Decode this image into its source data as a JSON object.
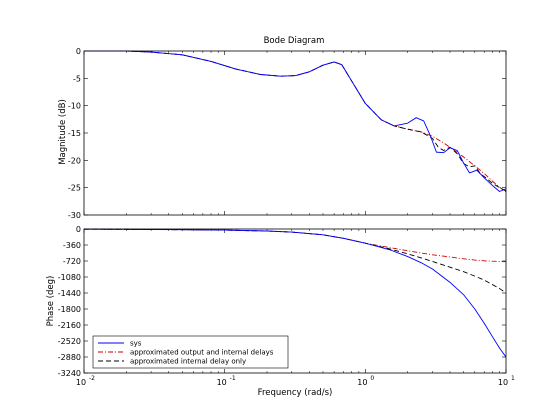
{
  "chart_data": [
    {
      "type": "line",
      "title": "Bode Diagram",
      "ylabel": "Magnitude (dB)",
      "xlabel": "",
      "xscale": "log",
      "xlim": [
        0.01,
        10
      ],
      "ylim": [
        -30,
        0
      ],
      "x_ticks": [
        0.01,
        0.1,
        1,
        10
      ],
      "y_ticks": [
        0,
        -5,
        -10,
        -15,
        -20,
        -25,
        -30
      ],
      "y_tick_labels": [
        "0",
        "-5",
        "-10",
        "-15",
        "-20",
        "-25",
        "-30"
      ],
      "grid": false,
      "series": [
        {
          "name": "sys",
          "color": "#0000ff",
          "style": "solid",
          "x": [
            0.01,
            0.02,
            0.03,
            0.05,
            0.08,
            0.12,
            0.18,
            0.25,
            0.32,
            0.4,
            0.5,
            0.6,
            0.68,
            0.8,
            1.0,
            1.3,
            1.6,
            2.0,
            2.3,
            2.6,
            2.9,
            3.2,
            3.6,
            4.0,
            4.5,
            5.0,
            5.5,
            6.2,
            7.0,
            8.0,
            9.0,
            10
          ],
          "y": [
            0,
            0,
            -0.2,
            -0.7,
            -1.9,
            -3.3,
            -4.3,
            -4.6,
            -4.5,
            -3.8,
            -2.6,
            -2.0,
            -2.5,
            -5.5,
            -9.6,
            -12.6,
            -13.7,
            -13.2,
            -12.2,
            -12.8,
            -15.5,
            -18.5,
            -18.6,
            -17.7,
            -18.2,
            -20.5,
            -22.3,
            -21.8,
            -23.2,
            -24.6,
            -25.7,
            -25.2
          ]
        },
        {
          "name": "approximated output and internal delays",
          "color": "#cc0000",
          "style": "dashdot",
          "x": [
            0.01,
            0.02,
            0.03,
            0.05,
            0.08,
            0.12,
            0.18,
            0.25,
            0.32,
            0.4,
            0.5,
            0.6,
            0.68,
            0.8,
            1.0,
            1.3,
            1.6,
            2.0,
            2.5,
            3.0,
            3.6,
            4.2,
            5.0,
            6.0,
            7.0,
            8.0,
            9.0,
            10
          ],
          "y": [
            0,
            0,
            -0.2,
            -0.7,
            -1.9,
            -3.3,
            -4.3,
            -4.6,
            -4.5,
            -3.8,
            -2.6,
            -2.0,
            -2.5,
            -5.5,
            -9.6,
            -12.6,
            -13.7,
            -14.3,
            -14.8,
            -15.6,
            -16.8,
            -18.0,
            -19.4,
            -21.0,
            -22.4,
            -23.8,
            -24.9,
            -25.8
          ]
        },
        {
          "name": "approximated internal delay only",
          "color": "#000000",
          "style": "dashed",
          "x": [
            0.01,
            0.02,
            0.03,
            0.05,
            0.08,
            0.12,
            0.18,
            0.25,
            0.32,
            0.4,
            0.5,
            0.6,
            0.68,
            0.8,
            1.0,
            1.3,
            1.6,
            2.0,
            2.5,
            3.0,
            3.3,
            3.6,
            4.0,
            4.5,
            5.0,
            5.5,
            6.0,
            6.6,
            7.2,
            8.0,
            9.0,
            10
          ],
          "y": [
            0,
            0,
            -0.2,
            -0.7,
            -1.9,
            -3.3,
            -4.3,
            -4.6,
            -4.5,
            -3.8,
            -2.6,
            -2.0,
            -2.5,
            -5.5,
            -9.6,
            -12.6,
            -13.7,
            -14.3,
            -14.8,
            -16.0,
            -17.6,
            -18.2,
            -17.6,
            -18.8,
            -20.6,
            -21.2,
            -21.0,
            -22.5,
            -23.2,
            -24.2,
            -25.0,
            -25.6
          ]
        }
      ]
    },
    {
      "type": "line",
      "title": "",
      "ylabel": "Phase (deg)",
      "xlabel": "Frequency  (rad/s)",
      "xscale": "log",
      "xlim": [
        0.01,
        10
      ],
      "ylim": [
        -3240,
        0
      ],
      "x_ticks": [
        0.01,
        0.1,
        1,
        10
      ],
      "x_tick_labels": [
        "10",
        "10",
        "10",
        "10"
      ],
      "x_tick_exponents": [
        "-2",
        "-1",
        "0",
        "1"
      ],
      "y_ticks": [
        0,
        -360,
        -720,
        -1080,
        -1440,
        -1800,
        -2160,
        -2520,
        -2880,
        -3240
      ],
      "y_tick_labels": [
        "0",
        "-360",
        "-720",
        "-1080",
        "-1440",
        "-1800",
        "-2160",
        "-2520",
        "-2880",
        "-3240"
      ],
      "grid": false,
      "legend_position": "bottom-left",
      "series": [
        {
          "name": "sys",
          "color": "#0000ff",
          "style": "solid",
          "x": [
            0.01,
            0.02,
            0.05,
            0.1,
            0.2,
            0.3,
            0.5,
            0.7,
            1.0,
            1.5,
            2.0,
            2.5,
            3.0,
            4.0,
            5.0,
            6.0,
            7.0,
            8.0,
            9.0,
            10
          ],
          "y": [
            -3,
            -8,
            -15,
            -25,
            -45,
            -70,
            -130,
            -210,
            -320,
            -470,
            -620,
            -760,
            -900,
            -1200,
            -1480,
            -1800,
            -2120,
            -2420,
            -2680,
            -2880
          ]
        },
        {
          "name": "approximated output and internal delays",
          "color": "#cc0000",
          "style": "dashdot",
          "x": [
            0.01,
            0.02,
            0.05,
            0.1,
            0.2,
            0.3,
            0.5,
            0.7,
            1.0,
            1.5,
            2.0,
            2.5,
            3.0,
            4.0,
            5.0,
            6.0,
            7.0,
            8.0,
            9.0,
            10
          ],
          "y": [
            -3,
            -8,
            -15,
            -25,
            -45,
            -70,
            -130,
            -210,
            -320,
            -420,
            -490,
            -540,
            -580,
            -630,
            -670,
            -700,
            -715,
            -725,
            -730,
            -735
          ]
        },
        {
          "name": "approximated internal delay only",
          "color": "#000000",
          "style": "dashed",
          "x": [
            0.01,
            0.02,
            0.05,
            0.1,
            0.2,
            0.3,
            0.5,
            0.7,
            1.0,
            1.5,
            2.0,
            2.5,
            3.0,
            4.0,
            5.0,
            6.0,
            7.0,
            8.0,
            9.0,
            10
          ],
          "y": [
            -3,
            -8,
            -15,
            -25,
            -45,
            -70,
            -130,
            -210,
            -320,
            -450,
            -560,
            -650,
            -730,
            -860,
            -960,
            -1060,
            -1150,
            -1250,
            -1340,
            -1440
          ]
        }
      ]
    }
  ],
  "colors": {
    "sys": "#0000ff",
    "approximated_output_and_internal_delays": "#cc0000",
    "approximated_internal_delay_only": "#000000",
    "axes": "#000000",
    "background": "#ffffff"
  }
}
